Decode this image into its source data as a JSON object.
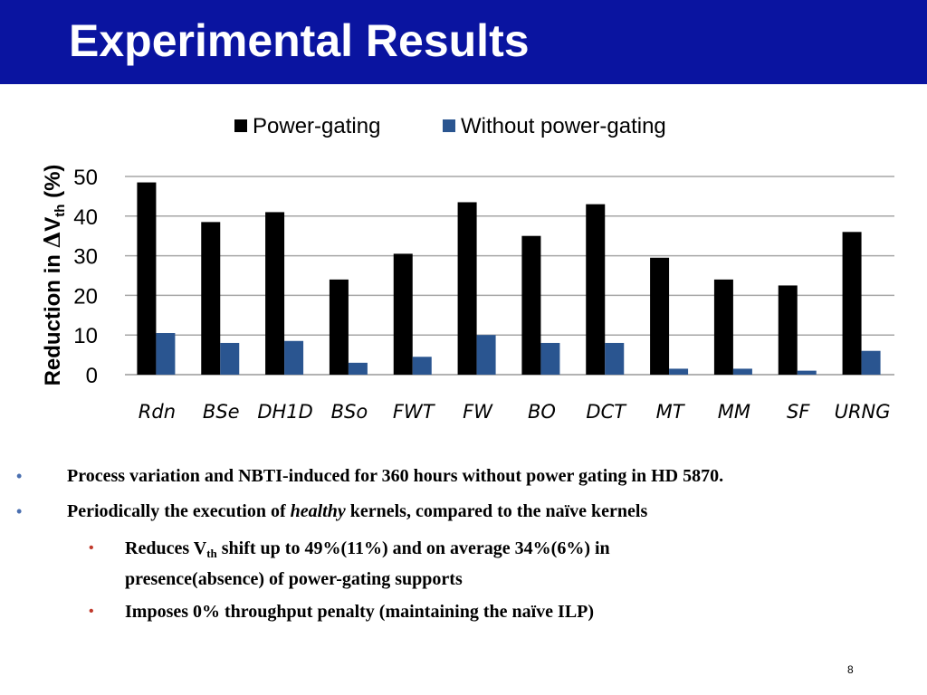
{
  "slide": {
    "title": "Experimental Results",
    "page_number": "8",
    "colors": {
      "title_bar": "#0a14a0",
      "bullet_primary": "#4a6fb0",
      "bullet_secondary": "#c0392b"
    }
  },
  "chart_data": {
    "type": "bar",
    "categories": [
      "Rdn",
      "BSe",
      "DH1D",
      "BSo",
      "FWT",
      "FW",
      "BO",
      "DCT",
      "MT",
      "MM",
      "SF",
      "URNG"
    ],
    "series": [
      {
        "name": "Power-gating",
        "color": "#000000",
        "values": [
          48.5,
          38.5,
          41,
          24,
          30.5,
          43.5,
          35,
          43,
          29.5,
          24,
          22.5,
          36
        ]
      },
      {
        "name": "Without power-gating",
        "color": "#2a5590",
        "values": [
          10.5,
          8,
          8.5,
          3,
          4.5,
          10,
          8,
          8,
          1.5,
          1.5,
          1,
          6
        ]
      }
    ],
    "yticks": [
      "0",
      "10",
      "20",
      "30",
      "40",
      "50"
    ],
    "ylabel": {
      "main": "Reduction in ",
      "delta": "Δ",
      "v": "V",
      "sub": "th",
      "unit": " (%)"
    },
    "ylim": [
      0,
      50
    ],
    "grid": true,
    "legend": "top"
  },
  "bullets": {
    "b1": {
      "marker": "•",
      "text": "Process variation and NBTI-induced for 360 hours without power gating in HD 5870."
    },
    "b2": {
      "marker": "•",
      "pre": "Periodically the execution of ",
      "em": "healthy",
      "post": " kernels, compared to the naïve kernels"
    },
    "b3": {
      "marker": "•",
      "pre": "Reduces V",
      "sub": "th",
      "post": " shift up to 49%(11%) and on average 34%(6%) in",
      "line2": "presence(absence) of power-gating supports"
    },
    "b4": {
      "marker": "•",
      "text": "Imposes 0% throughput penalty (maintaining the naïve ILP)"
    }
  }
}
